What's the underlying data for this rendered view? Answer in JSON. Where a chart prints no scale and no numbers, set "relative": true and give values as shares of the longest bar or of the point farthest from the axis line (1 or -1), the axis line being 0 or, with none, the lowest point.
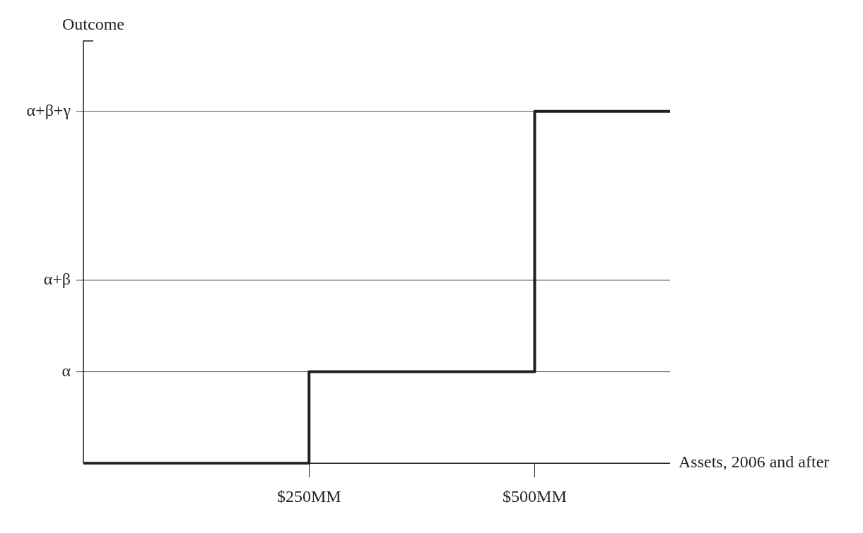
{
  "chart_data": {
    "type": "step",
    "xlabel": "Assets, 2006 and after",
    "ylabel": "Outcome",
    "x": [
      0,
      250,
      500,
      650
    ],
    "values": [
      0,
      0.26,
      1,
      1
    ],
    "relative": true,
    "color": "#231f20",
    "xlim": [
      0,
      650
    ],
    "xticks": [
      {
        "value": 250,
        "label": "$250MM"
      },
      {
        "value": 500,
        "label": "$500MM"
      }
    ],
    "ref_lines": [
      {
        "axis": "y",
        "value": 0.26,
        "label": "α"
      },
      {
        "axis": "y",
        "value": 0.52,
        "label": "α+β"
      },
      {
        "axis": "y",
        "value": 1,
        "label": "α+β+γ"
      }
    ],
    "marker": "none",
    "line_style": "solid"
  }
}
